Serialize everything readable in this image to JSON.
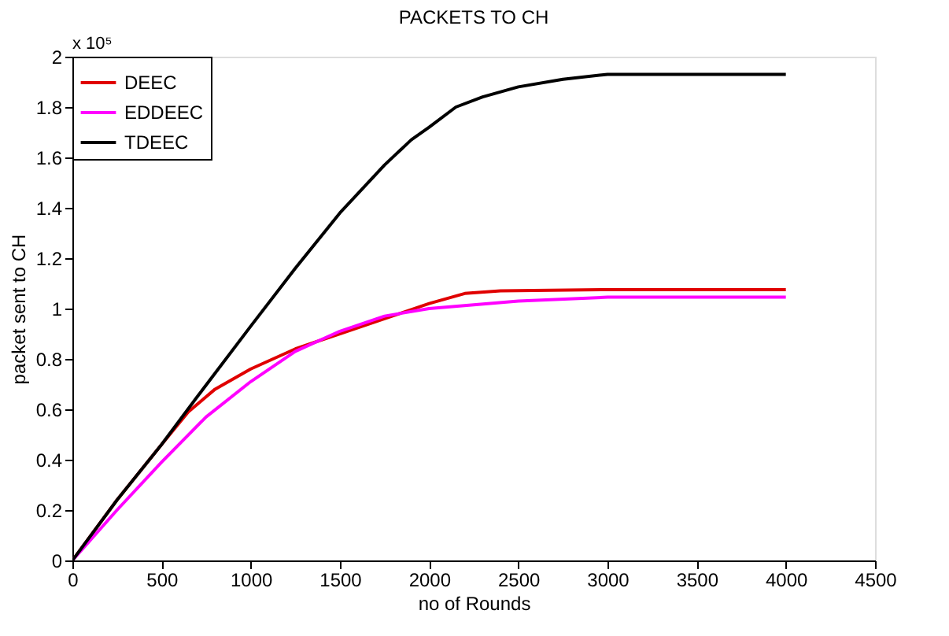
{
  "chart_data": {
    "type": "line",
    "title": "PACKETS TO CH",
    "xlabel": "no of Rounds",
    "ylabel": "packet sent to CH",
    "annotations": [
      "x 10⁵"
    ],
    "xlim": [
      0,
      4500
    ],
    "xticks": [
      0,
      500,
      1000,
      1500,
      2000,
      2500,
      3000,
      3500,
      4000,
      4500
    ],
    "ylim": [
      0,
      2
    ],
    "yticks": [
      0,
      0.2,
      0.4,
      0.6,
      0.8,
      1,
      1.2,
      1.4,
      1.6,
      1.8,
      2
    ],
    "grid": false,
    "legend": "top left",
    "line_style": "solid",
    "marker": "none",
    "series": [
      {
        "name": "DEEC",
        "color": "#e00000",
        "x": [
          0,
          250,
          500,
          650,
          800,
          1000,
          1250,
          1500,
          1750,
          2000,
          2200,
          2400,
          3000,
          4000
        ],
        "values": [
          0,
          0.24,
          0.46,
          0.59,
          0.68,
          0.76,
          0.84,
          0.9,
          0.96,
          1.02,
          1.06,
          1.07,
          1.075,
          1.075
        ]
      },
      {
        "name": "EDDEEC",
        "color": "#ff00ff",
        "x": [
          0,
          250,
          500,
          750,
          1000,
          1250,
          1500,
          1750,
          2000,
          2500,
          3000,
          4000
        ],
        "values": [
          0,
          0.2,
          0.39,
          0.57,
          0.71,
          0.83,
          0.91,
          0.97,
          1.0,
          1.03,
          1.045,
          1.045
        ]
      },
      {
        "name": "TDEEC",
        "color": "#000000",
        "x": [
          0,
          250,
          500,
          700,
          1000,
          1250,
          1500,
          1750,
          1900,
          2000,
          2150,
          2300,
          2500,
          2750,
          3000,
          4000
        ],
        "values": [
          0,
          0.24,
          0.46,
          0.65,
          0.93,
          1.16,
          1.38,
          1.57,
          1.67,
          1.72,
          1.8,
          1.84,
          1.88,
          1.91,
          1.93,
          1.93
        ]
      }
    ]
  }
}
